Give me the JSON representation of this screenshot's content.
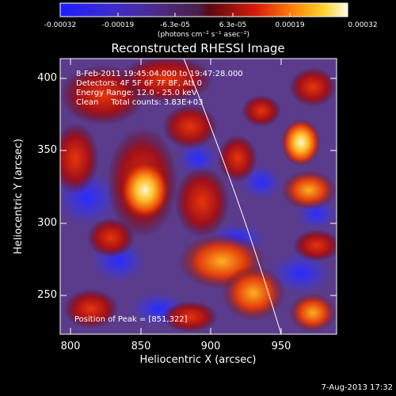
{
  "colorbar": {
    "ticks": [
      "-0.00032",
      "-0.00019",
      "-6.3e-05",
      "6.3e-05",
      "0.00019",
      "0.00032"
    ],
    "units_text": "(photons cm⁻² s⁻¹ asec⁻²)"
  },
  "plot": {
    "title": "Reconstructed RHESSI Image",
    "xlabel": "Heliocentric X (arcsec)",
    "ylabel": "Heliocentric Y (arcsec)",
    "x_ticks": [
      "800",
      "850",
      "900",
      "950"
    ],
    "y_ticks": [
      "400",
      "350",
      "300",
      "250"
    ],
    "info": {
      "time": "8-Feb-2011 19:45:04.000 to 19:47:28.000",
      "detectors": "Detectors: 4F 5F 6F 7F 8F, Att 0",
      "energy": "Energy Range: 12.0 - 25.0 keV",
      "clean": "Clean     Total counts: 3.83E+03"
    },
    "peak": "Position of Peak = [851,322]"
  },
  "footer": {
    "date": "7-Aug-2013 17:32"
  }
}
